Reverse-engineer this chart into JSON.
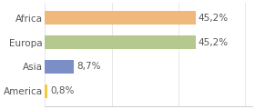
{
  "categories": [
    "America",
    "Asia",
    "Europa",
    "Africa"
  ],
  "values": [
    0.8,
    8.7,
    45.2,
    45.2
  ],
  "labels": [
    "0,8%",
    "8,7%",
    "45,2%",
    "45,2%"
  ],
  "bar_colors": [
    "#f5c842",
    "#7b8ec8",
    "#b5c98e",
    "#f0b87a"
  ],
  "xlim": [
    0,
    62
  ],
  "background_color": "#ffffff",
  "label_fontsize": 7.5,
  "tick_fontsize": 7.5,
  "bar_height": 0.55
}
